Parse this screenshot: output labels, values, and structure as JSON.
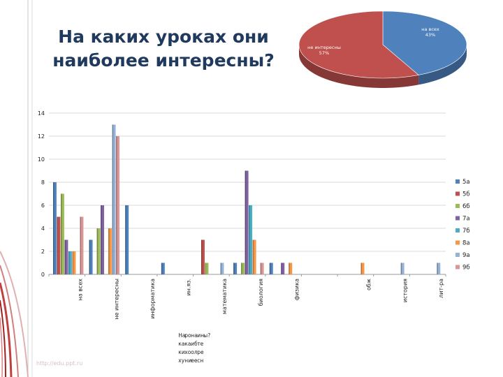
{
  "page": {
    "title": "На каких уроках они наиболее интересны?",
    "watermark": "http://edu.ppt.ru"
  },
  "chart_data": [
    {
      "type": "pie",
      "slices": [
        {
          "label": "на всех",
          "percent": "43%",
          "value": 43,
          "color": "#4f81bd"
        },
        {
          "label": "не интересны",
          "percent": "57%",
          "value": 57,
          "color": "#c0504d"
        }
      ]
    },
    {
      "type": "bar",
      "title": "",
      "xlabel": "",
      "ylabel": "",
      "ylim": [
        0,
        14
      ],
      "yticks": [
        0,
        2,
        4,
        6,
        8,
        10,
        12,
        14
      ],
      "grid": true,
      "legend_position": "right",
      "categories": [
        "на всех",
        "не интересны",
        "информатика",
        "ин.яз.",
        "математика",
        "биология",
        "физика",
        "обж",
        "история",
        "лит-ра"
      ],
      "extra_label": "На каких уроках они наиболее интересны?",
      "series": [
        {
          "name": "5а",
          "color": "#4f81bd",
          "values": [
            8,
            3,
            6,
            1,
            0,
            1,
            1,
            0,
            0,
            0
          ]
        },
        {
          "name": "5б",
          "color": "#c0504d",
          "values": [
            5,
            0,
            0,
            0,
            3,
            0,
            0,
            0,
            0,
            0
          ]
        },
        {
          "name": "6б",
          "color": "#9bbb59",
          "values": [
            7,
            4,
            0,
            0,
            1,
            1,
            0,
            0,
            0,
            0
          ]
        },
        {
          "name": "7а",
          "color": "#8064a2",
          "values": [
            3,
            6,
            0,
            0,
            0,
            9,
            1,
            0,
            0,
            0
          ]
        },
        {
          "name": "7б",
          "color": "#4bacc6",
          "values": [
            2,
            0,
            0,
            0,
            0,
            6,
            0,
            0,
            0,
            0
          ]
        },
        {
          "name": "8а",
          "color": "#f79646",
          "values": [
            2,
            4,
            0,
            0,
            0,
            3,
            1,
            1,
            0,
            0
          ]
        },
        {
          "name": "9а",
          "color": "#95b3d7",
          "values": [
            0,
            13,
            0,
            0,
            1,
            0,
            0,
            0,
            1,
            1
          ]
        },
        {
          "name": "9б",
          "color": "#d99694",
          "values": [
            5,
            12,
            0,
            0,
            0,
            1,
            0,
            0,
            0,
            0
          ]
        }
      ]
    }
  ]
}
